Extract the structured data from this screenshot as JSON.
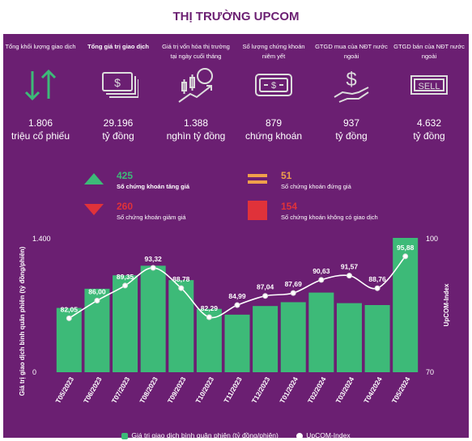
{
  "title": "THỊ TRƯỜNG UPCOM",
  "stats": [
    {
      "label": "Tổng khối lượng giao dịch",
      "value": "1.806",
      "unit": "triệu cổ phiếu",
      "icon": "up-down-arrows-icon"
    },
    {
      "label": "Tổng giá trị giao dịch",
      "value": "29.196",
      "unit": "tỷ đồng",
      "icon": "banknotes-icon"
    },
    {
      "label": "Giá trị vốn hóa thị trường tại ngày cuối tháng",
      "value": "1.388",
      "unit": "nghìn tỷ đồng",
      "icon": "candlestick-growth-icon"
    },
    {
      "label": "Số lượng chứng khoán niêm yết",
      "value": "879",
      "unit": "chứng khoán",
      "icon": "certificate-icon"
    },
    {
      "label": "GTGD mua của NĐT nước ngoài",
      "value": "937",
      "unit": "tỷ đồng",
      "icon": "hand-dollar-icon"
    },
    {
      "label": "GTGD bán của NĐT nước ngoài",
      "value": "4.632",
      "unit": "tỷ đồng",
      "icon": "sell-sign-icon"
    }
  ],
  "counts": [
    {
      "value": "425",
      "desc": "Số chứng khoán tăng giá",
      "color": "#3dba78",
      "icon": "up-triangle-icon"
    },
    {
      "value": "51",
      "desc": "Số chứng khoán đứng giá",
      "color": "#f0a04b",
      "icon": "equals-icon"
    },
    {
      "value": "260",
      "desc": "Số chứng khoán giảm giá",
      "color": "#e0323a",
      "icon": "down-triangle-icon"
    },
    {
      "value": "154",
      "desc": "Số chứng khoán không có giao dịch",
      "color": "#e0323a",
      "icon": "square-icon"
    }
  ],
  "colors": {
    "panel": "#6b1f72",
    "bar": "#3dba78",
    "line": "#ffffff",
    "accent": "#6b1f72"
  },
  "chart_data": {
    "type": "bar",
    "categories": [
      "T05/2023",
      "T06/2023",
      "T07/2023",
      "T08/2023",
      "T09/2023",
      "T10/2023",
      "T11/2023",
      "T12/2023",
      "T01/2024",
      "T02/2024",
      "T03/2024",
      "T04/2024",
      "T05/2024"
    ],
    "series": [
      {
        "name": "Giá trị giao dịch bình quân phiên (tỷ đồng/phiên)",
        "type": "bar",
        "axis": "left",
        "values": [
          670,
          870,
          1010,
          1110,
          960,
          660,
          600,
          690,
          730,
          830,
          720,
          700,
          1400
        ]
      },
      {
        "name": "UpCOM-Index",
        "type": "line",
        "axis": "right",
        "values": [
          82.05,
          86.0,
          89.35,
          93.32,
          88.78,
          82.29,
          84.99,
          87.04,
          87.69,
          90.63,
          91.57,
          88.76,
          95.88
        ],
        "labels": [
          "82,05",
          "86,00",
          "89,35",
          "93,32",
          "88,78",
          "82,29",
          "84,99",
          "87,04",
          "87,69",
          "90,63",
          "91,57",
          "88,76",
          "95,88"
        ]
      }
    ],
    "ylabel": "Giá trị giao dịch bình quân phiên (tỷ đồng/phiên)",
    "y2label": "UpCOM-Index",
    "ylim": [
      0,
      1400
    ],
    "ytick_labels": [
      "0",
      "1.400"
    ],
    "y2lim": [
      70,
      100
    ],
    "y2tick_labels": [
      "70",
      "100"
    ],
    "legend_position": "bottom"
  }
}
